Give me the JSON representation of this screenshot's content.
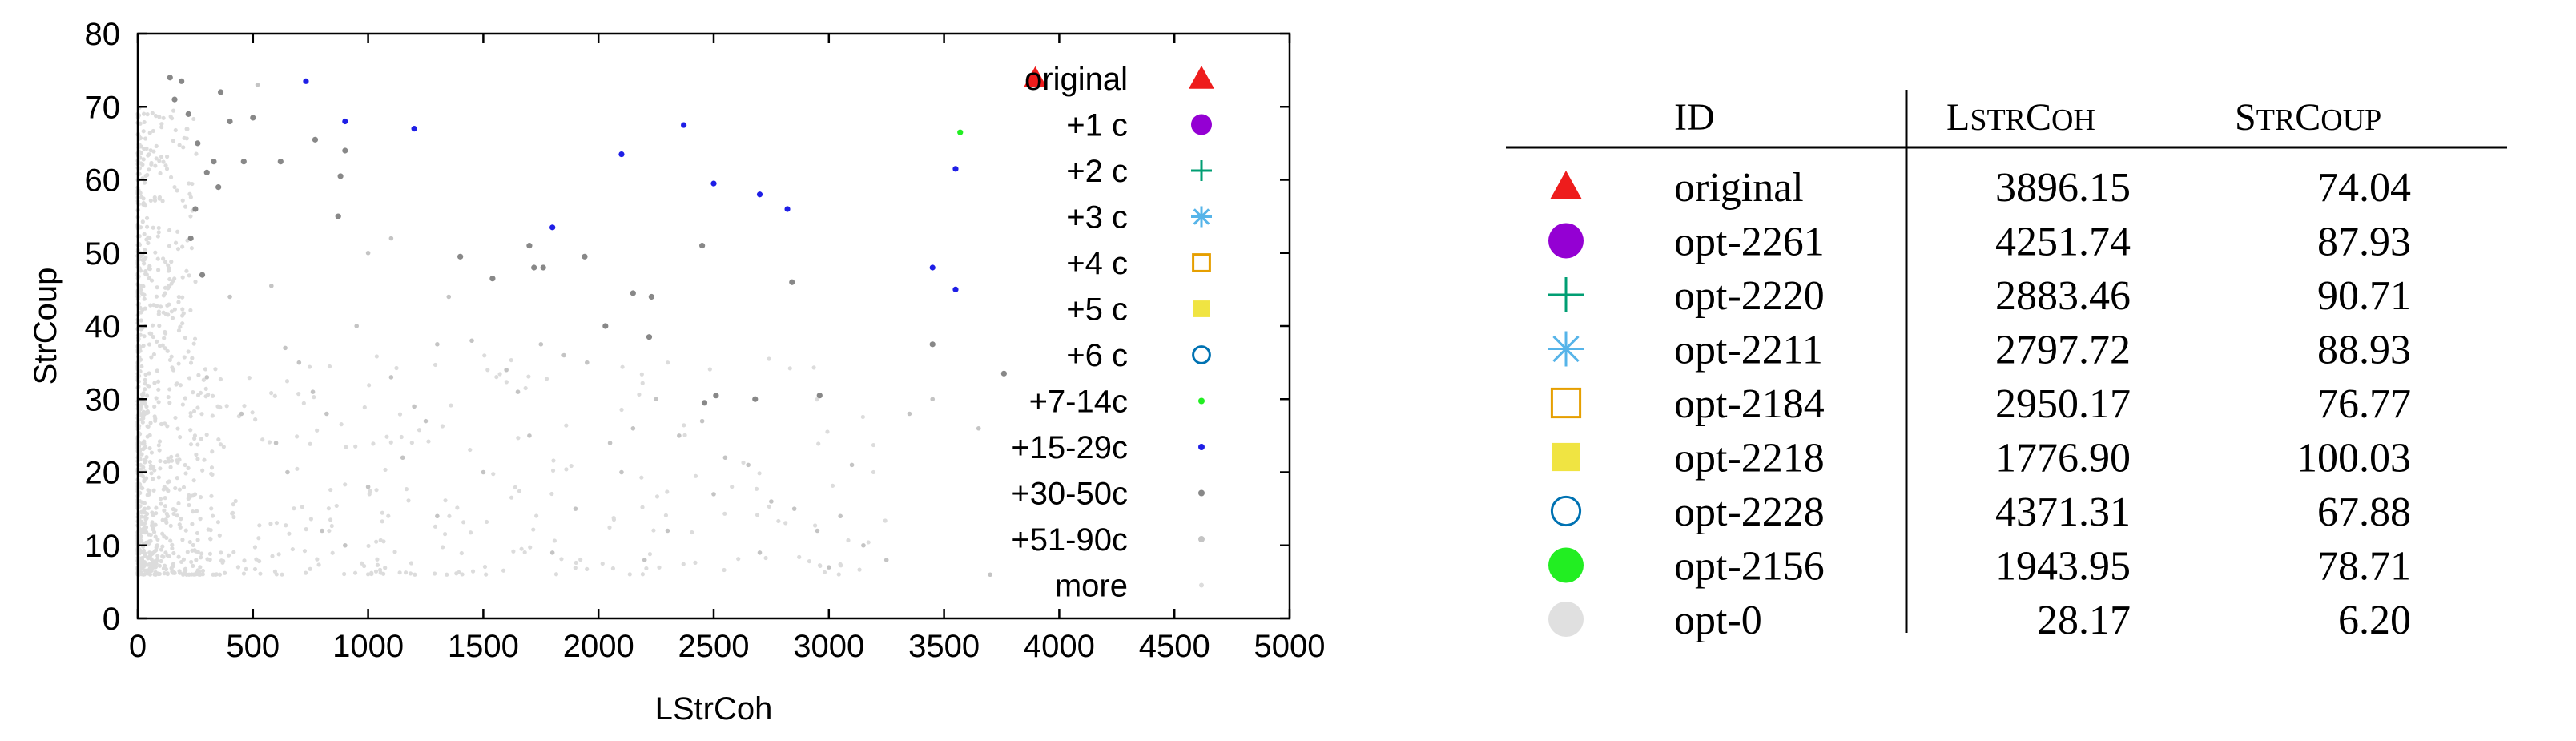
{
  "chart_data": {
    "type": "scatter",
    "xlabel": "LStrCoh",
    "ylabel": "StrCoup",
    "xlim": [
      0,
      5000
    ],
    "ylim": [
      0,
      80
    ],
    "xticks": [
      0,
      500,
      1000,
      1500,
      2000,
      2500,
      3000,
      3500,
      4000,
      4500,
      5000
    ],
    "yticks": [
      0,
      10,
      20,
      30,
      40,
      50,
      60,
      70,
      80
    ],
    "xtick_labels": [
      "0",
      "500",
      "1000",
      "1500",
      "2000",
      "2500",
      "3000",
      "3500",
      "4000",
      "4500",
      "5000"
    ],
    "ytick_labels": [
      "0",
      "10",
      "20",
      "30",
      "40",
      "50",
      "60",
      "70",
      "80"
    ],
    "grid": false,
    "legend_position": "right",
    "series": [
      {
        "name": "original",
        "marker": "triangle",
        "color": "#ee1c1c",
        "points": [
          [
            3896,
            74.0
          ]
        ]
      },
      {
        "name": "+1 c",
        "marker": "circle",
        "color": "#9400d3",
        "points": []
      },
      {
        "name": "+2 c",
        "marker": "plus",
        "color": "#009e73",
        "points": []
      },
      {
        "name": "+3 c",
        "marker": "star",
        "color": "#56b4e9",
        "points": []
      },
      {
        "name": "+4 c",
        "marker": "open-square",
        "color": "#e69f00",
        "points": []
      },
      {
        "name": "+5 c",
        "marker": "filled-square",
        "color": "#f0e442",
        "points": []
      },
      {
        "name": "+6 c",
        "marker": "open-circle",
        "color": "#0072b2",
        "points": []
      },
      {
        "name": "+7-14c",
        "marker": "dot",
        "color": "#22ee22",
        "points": [
          [
            3570,
            66.5
          ]
        ]
      },
      {
        "name": "+15-29c",
        "marker": "dot",
        "color": "#1e1ee6",
        "points": [
          [
            730,
            73.5
          ],
          [
            900,
            68
          ],
          [
            1200,
            67
          ],
          [
            2370,
            67.5
          ],
          [
            2100,
            63.5
          ],
          [
            2500,
            59.5
          ],
          [
            2700,
            58
          ],
          [
            2820,
            56
          ],
          [
            1800,
            53.5
          ],
          [
            3550,
            61.5
          ],
          [
            3450,
            48
          ],
          [
            3550,
            45
          ]
        ]
      },
      {
        "name": "+30-50c",
        "marker": "dot",
        "color": "#888888",
        "points": [
          [
            140,
            74
          ],
          [
            190,
            73.5
          ],
          [
            160,
            71
          ],
          [
            220,
            69
          ],
          [
            260,
            65
          ],
          [
            300,
            61
          ],
          [
            350,
            59
          ],
          [
            400,
            68
          ],
          [
            460,
            62.5
          ],
          [
            620,
            62.5
          ],
          [
            770,
            65.5
          ],
          [
            870,
            55
          ],
          [
            880,
            60.5
          ],
          [
            900,
            64
          ],
          [
            1400,
            49.5
          ],
          [
            1700,
            51
          ],
          [
            1720,
            48
          ],
          [
            1760,
            48
          ],
          [
            1940,
            49.5
          ],
          [
            2150,
            44.5
          ],
          [
            2230,
            44
          ],
          [
            2450,
            51
          ],
          [
            2840,
            46
          ],
          [
            3450,
            37.5
          ],
          [
            3760,
            33.5
          ],
          [
            2220,
            38.5
          ],
          [
            500,
            68.5
          ],
          [
            360,
            72
          ],
          [
            250,
            56
          ],
          [
            230,
            52
          ],
          [
            280,
            47
          ],
          [
            330,
            62.5
          ],
          [
            1540,
            46.5
          ],
          [
            2680,
            30
          ],
          [
            2960,
            30.5
          ],
          [
            2510,
            30.5
          ],
          [
            2030,
            40
          ],
          [
            2460,
            29.5
          ]
        ]
      },
      {
        "name": "+51-90c",
        "marker": "dot",
        "color": "#c4c4c4",
        "points": [
          [
            520,
            73
          ],
          [
            580,
            45.5
          ],
          [
            640,
            37
          ],
          [
            700,
            35
          ],
          [
            760,
            31
          ],
          [
            820,
            28
          ],
          [
            950,
            40
          ],
          [
            1100,
            33
          ],
          [
            1200,
            29
          ],
          [
            1250,
            27
          ],
          [
            1300,
            37.5
          ],
          [
            1350,
            44
          ],
          [
            1450,
            38
          ],
          [
            1600,
            34
          ],
          [
            1650,
            31
          ],
          [
            1750,
            37.5
          ],
          [
            1850,
            36
          ],
          [
            1950,
            35
          ],
          [
            2050,
            24
          ],
          [
            2150,
            26
          ],
          [
            2250,
            30
          ],
          [
            2350,
            25
          ],
          [
            2450,
            27
          ],
          [
            2550,
            22
          ],
          [
            2650,
            21
          ],
          [
            2750,
            16
          ],
          [
            2850,
            15
          ],
          [
            2950,
            12
          ],
          [
            3050,
            14
          ],
          [
            3150,
            10
          ],
          [
            3250,
            8
          ],
          [
            3350,
            28
          ],
          [
            3450,
            30
          ],
          [
            3650,
            26
          ],
          [
            3700,
            6
          ],
          [
            1000,
            18
          ],
          [
            1500,
            20
          ],
          [
            1900,
            15
          ],
          [
            2300,
            12
          ],
          [
            2700,
            9
          ],
          [
            800,
            12
          ],
          [
            600,
            24
          ],
          [
            1150,
            22
          ],
          [
            1700,
            25
          ],
          [
            2100,
            20
          ],
          [
            2500,
            17
          ],
          [
            3100,
            21
          ],
          [
            400,
            44
          ],
          [
            1000,
            50
          ],
          [
            1100,
            52
          ],
          [
            300,
            33
          ],
          [
            450,
            28
          ],
          [
            650,
            20
          ],
          [
            900,
            10
          ],
          [
            1300,
            14
          ],
          [
            1800,
            9
          ],
          [
            2200,
            8
          ],
          [
            3000,
            7
          ]
        ]
      },
      {
        "name": "more",
        "marker": "dot",
        "color": "#dcdcdc",
        "points": []
      }
    ]
  },
  "table": {
    "headers": [
      "ID",
      "LSTRCOH",
      "STRCOUP"
    ],
    "rows": [
      {
        "marker": "triangle",
        "color": "#ee1c1c",
        "id": "original",
        "lstrcoh": "3896.15",
        "strcoup": "74.04"
      },
      {
        "marker": "circle",
        "color": "#9400d3",
        "id": "opt-2261",
        "lstrcoh": "4251.74",
        "strcoup": "87.93"
      },
      {
        "marker": "plus",
        "color": "#009e73",
        "id": "opt-2220",
        "lstrcoh": "2883.46",
        "strcoup": "90.71"
      },
      {
        "marker": "star",
        "color": "#56b4e9",
        "id": "opt-2211",
        "lstrcoh": "2797.72",
        "strcoup": "88.93"
      },
      {
        "marker": "open-square",
        "color": "#e69f00",
        "id": "opt-2184",
        "lstrcoh": "2950.17",
        "strcoup": "76.77"
      },
      {
        "marker": "filled-square",
        "color": "#f0e442",
        "id": "opt-2218",
        "lstrcoh": "1776.90",
        "strcoup": "100.03"
      },
      {
        "marker": "open-circle",
        "color": "#0072b2",
        "id": "opt-2228",
        "lstrcoh": "4371.31",
        "strcoup": "67.88"
      },
      {
        "marker": "circle",
        "color": "#22ee22",
        "id": "opt-2156",
        "lstrcoh": "1943.95",
        "strcoup": "78.71"
      },
      {
        "marker": "circle",
        "color": "#e0e0e0",
        "id": "opt-0",
        "lstrcoh": "28.17",
        "strcoup": "6.20"
      }
    ]
  }
}
